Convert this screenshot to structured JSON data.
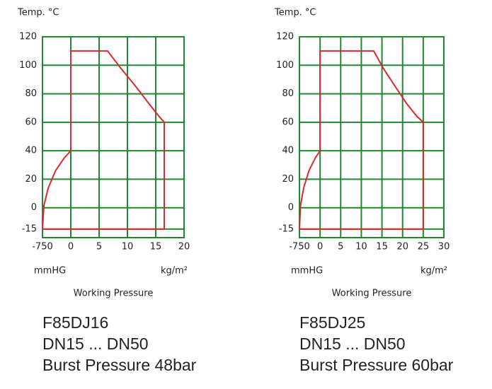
{
  "chart_data": [
    {
      "type": "line",
      "y_label": "Temp. °C",
      "x_label_left": "mmHG",
      "x_label_right": "kg/m²",
      "x_label": "Working Pressure",
      "caption": [
        "F85DJ16",
        "DN15 ... DN50",
        "Burst Pressure 48bar"
      ],
      "color": "#e0262e",
      "grid_color": "#1e8a30",
      "xlim": [
        -750,
        20
      ],
      "xticks": [
        -750,
        0,
        5,
        10,
        15,
        20
      ],
      "ylim": [
        -21,
        120
      ],
      "yticks": [
        120,
        100,
        80,
        60,
        40,
        20,
        0,
        -15
      ],
      "grid": true,
      "x": [
        -750,
        16.5,
        16.5,
        15.6,
        13.8,
        11.3,
        8.8,
        6.5,
        0,
        0,
        -173,
        -404,
        -596,
        -712,
        -750
      ],
      "values": [
        -15,
        -15,
        60,
        64,
        73,
        86,
        98,
        110,
        110,
        40,
        35,
        26,
        14,
        1.5,
        -15
      ]
    },
    {
      "type": "line",
      "y_label": "Temp. °C",
      "x_label_left": "mmHG",
      "x_label_right": "kg/m²",
      "x_label": "Working Pressure",
      "caption": [
        "F85DJ25",
        "DN15 ... DN50",
        "Burst Pressure 60bar"
      ],
      "color": "#e0262e",
      "grid_color": "#1e8a30",
      "xlim": [
        -750,
        30
      ],
      "xticks": [
        -750,
        0,
        5,
        10,
        15,
        20,
        25,
        30
      ],
      "ylim": [
        -21,
        120
      ],
      "yticks": [
        120,
        100,
        80,
        60,
        40,
        20,
        0,
        -15
      ],
      "grid": true,
      "x": [
        -750,
        25,
        25,
        23.5,
        21,
        18,
        15.3,
        13,
        0,
        0,
        -173,
        -404,
        -596,
        -712,
        -750
      ],
      "values": [
        -15,
        -15,
        60,
        64,
        73,
        86,
        98,
        110,
        110,
        40,
        35,
        26,
        14,
        1.5,
        -15
      ]
    }
  ]
}
